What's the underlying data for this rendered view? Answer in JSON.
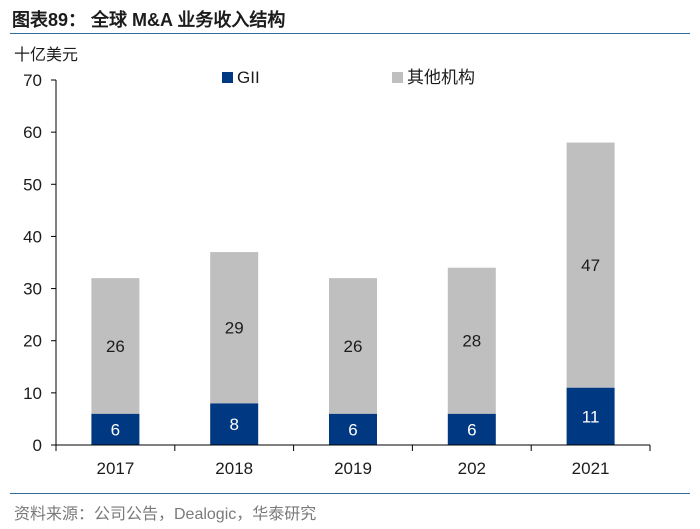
{
  "header": {
    "title": "图表89：  全球 M&A 业务收入结构"
  },
  "footer": {
    "source": "资料来源：公司公告，Dealogic，华泰研究"
  },
  "chart_data": {
    "type": "bar",
    "stacked": true,
    "ylabel": "十亿美元",
    "ylim": [
      0,
      70
    ],
    "yticks": [
      0,
      10,
      20,
      30,
      40,
      50,
      60,
      70
    ],
    "categories": [
      "2017",
      "2018",
      "2019",
      "202",
      "2021"
    ],
    "series": [
      {
        "name": "GII",
        "color": "#003882",
        "values": [
          6,
          8,
          6,
          6,
          11
        ]
      },
      {
        "name": "其他机构",
        "color": "#bfbfbf",
        "values": [
          26,
          29,
          26,
          28,
          47
        ]
      }
    ],
    "legend_position": "top"
  }
}
